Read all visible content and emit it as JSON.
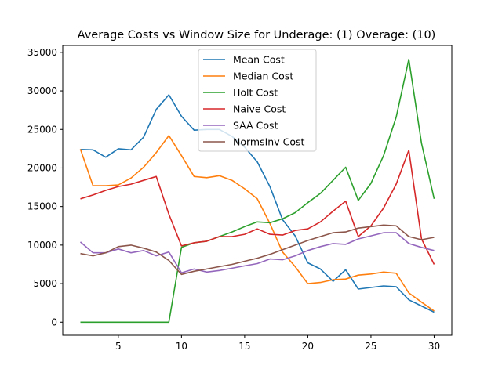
{
  "chart_data": {
    "type": "line",
    "title": "Average Costs vs Window Size for Underage: (1) Overage: (10)",
    "xlabel": "",
    "ylabel": "",
    "xlim": [
      0.6,
      31.4
    ],
    "ylim": [
      -1700,
      35900
    ],
    "xticks": [
      5,
      10,
      15,
      20,
      25,
      30
    ],
    "yticks": [
      0,
      5000,
      10000,
      15000,
      20000,
      25000,
      30000,
      35000
    ],
    "grid": false,
    "legend_position": "top-center",
    "x": [
      2,
      3,
      4,
      5,
      6,
      7,
      8,
      9,
      10,
      11,
      12,
      13,
      14,
      15,
      16,
      17,
      18,
      19,
      20,
      21,
      22,
      23,
      24,
      25,
      26,
      27,
      28,
      29,
      30
    ],
    "series": [
      {
        "name": "Mean Cost",
        "color": "#1f77b4",
        "values": [
          22400,
          22350,
          21400,
          22500,
          22350,
          24000,
          27600,
          29500,
          26700,
          24900,
          25000,
          25000,
          24100,
          22700,
          20800,
          17600,
          13300,
          11200,
          7700,
          6900,
          5300,
          6800,
          4300,
          4500,
          4700,
          4600,
          2900,
          2100,
          1300
        ]
      },
      {
        "name": "Median Cost",
        "color": "#ff7f0e",
        "values": [
          22450,
          17700,
          17700,
          17800,
          18700,
          20100,
          22000,
          24200,
          21600,
          18900,
          18750,
          19000,
          18400,
          17300,
          16000,
          12800,
          9100,
          7200,
          5000,
          5150,
          5500,
          5600,
          6100,
          6250,
          6500,
          6350,
          3800,
          2600,
          1450
        ]
      },
      {
        "name": "Holt Cost",
        "color": "#2ca02c",
        "values": [
          0,
          0,
          0,
          0,
          0,
          0,
          0,
          0,
          9700,
          10300,
          10500,
          11100,
          11700,
          12400,
          13000,
          12900,
          13400,
          14200,
          15500,
          16700,
          18400,
          20100,
          15800,
          18000,
          21600,
          26600,
          34100,
          23200,
          16000
        ]
      },
      {
        "name": "Naive Cost",
        "color": "#d62728",
        "values": [
          16000,
          16500,
          17100,
          17600,
          17900,
          18400,
          18900,
          14000,
          9900,
          10300,
          10500,
          11100,
          11100,
          11400,
          12100,
          11400,
          11300,
          11900,
          12100,
          13000,
          14400,
          15700,
          11100,
          12500,
          14800,
          17900,
          22300,
          10800,
          7500
        ]
      },
      {
        "name": "SAA Cost",
        "color": "#9467bd",
        "values": [
          10400,
          9000,
          9000,
          9500,
          9000,
          9300,
          8600,
          9100,
          6400,
          6900,
          6500,
          6700,
          7000,
          7300,
          7600,
          8200,
          8100,
          8600,
          9300,
          9800,
          10200,
          10100,
          10800,
          11200,
          11600,
          11600,
          10200,
          9700,
          9300
        ]
      },
      {
        "name": "NormsInv Cost",
        "color": "#8c564b",
        "values": [
          8900,
          8600,
          9000,
          9800,
          10000,
          9600,
          9100,
          8000,
          6200,
          6600,
          6900,
          7200,
          7500,
          7900,
          8300,
          8800,
          9400,
          10000,
          10600,
          11100,
          11600,
          11700,
          12200,
          12400,
          12600,
          12500,
          11100,
          10700,
          11000
        ]
      }
    ]
  }
}
